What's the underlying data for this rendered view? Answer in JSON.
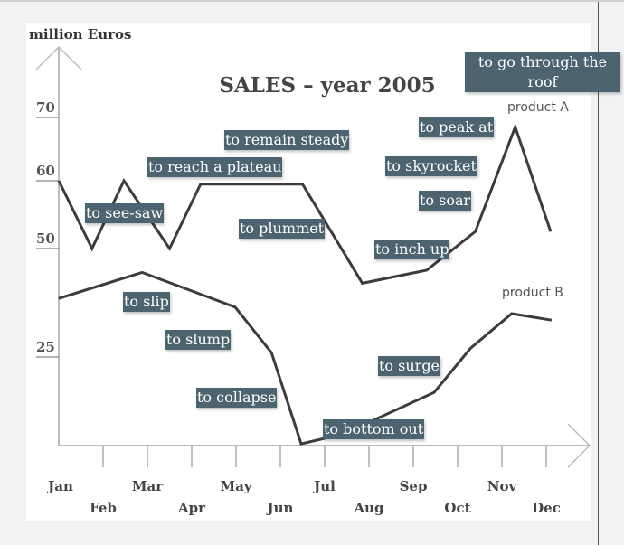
{
  "chart_data": {
    "type": "line",
    "title": "SALES – year 2005",
    "ylabel": "million Euros",
    "xlabel": "",
    "categories": [
      "Jan",
      "Feb",
      "Mar",
      "Apr",
      "May",
      "Jun",
      "Jul",
      "Aug",
      "Sep",
      "Oct",
      "Nov",
      "Dec"
    ],
    "y_ticks": [
      25,
      50,
      60,
      70
    ],
    "ylim": [
      0,
      75
    ],
    "grid": false,
    "series": [
      {
        "name": "product A",
        "x": [
          0,
          0.75,
          1.47,
          2.5,
          3.2,
          5.5,
          6.85,
          8.3,
          9.4,
          10.3,
          11.1
        ],
        "values": [
          60,
          50,
          60,
          50,
          59.5,
          59.5,
          42,
          45,
          52.5,
          68.5,
          52.5
        ]
      },
      {
        "name": "product B",
        "x": [
          0,
          1.88,
          3.98,
          4.8,
          5.47,
          6.43,
          8.47,
          9.29,
          10.22,
          11.12
        ],
        "values": [
          38.5,
          44.5,
          36.5,
          26,
          0.5,
          3.3,
          15,
          27,
          35,
          33.5
        ]
      }
    ],
    "annotations": [
      "to go through the roof",
      "to peak at",
      "to remain steady",
      "to reach a plateau",
      "to skyrocket",
      "to soar",
      "to see-saw",
      "to plummet",
      "to inch up",
      "to slip",
      "to slump",
      "to surge",
      "to collapse",
      "to bottom out"
    ]
  },
  "colors": {
    "line": "#3c3c3c",
    "label_bg": "#4b6470",
    "axis": "#bbbbbb"
  }
}
